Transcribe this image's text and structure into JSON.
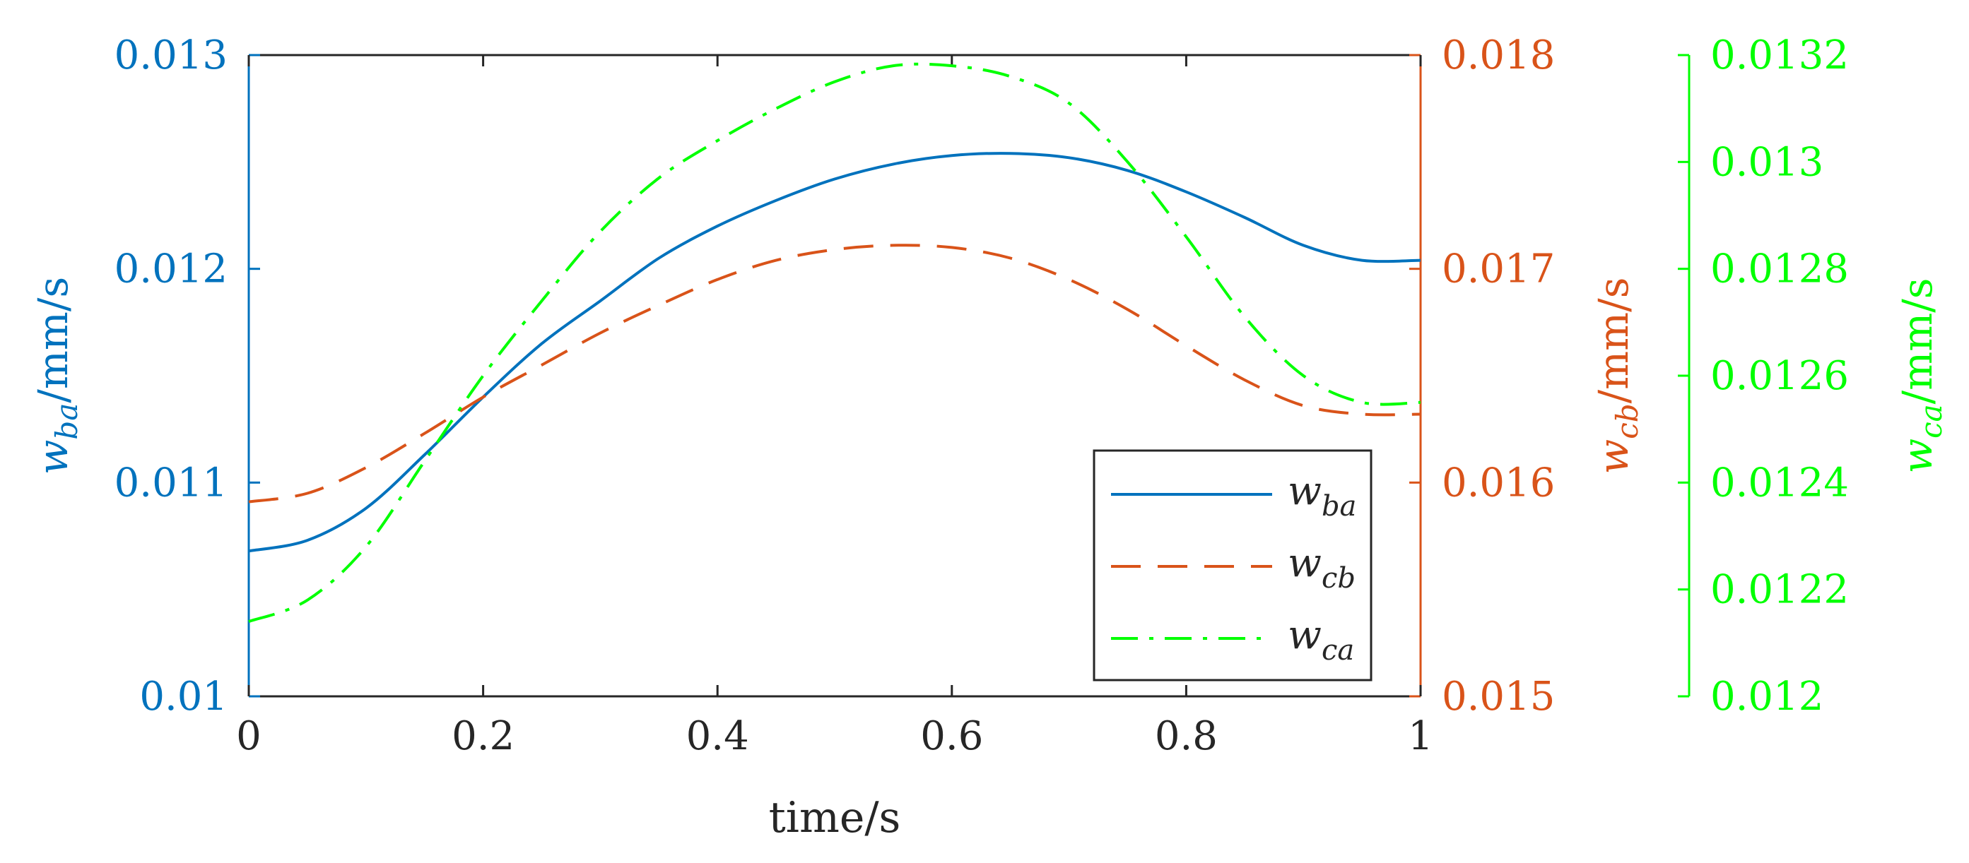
{
  "chart_data": {
    "type": "line",
    "title": "",
    "xlabel": "time/s",
    "x_ticks": [
      0,
      0.2,
      0.4,
      0.6,
      0.8,
      1
    ],
    "x_tick_labels": [
      "0",
      "0.2",
      "0.4",
      "0.6",
      "0.8",
      "1"
    ],
    "xlim": [
      0,
      1
    ],
    "grid": false,
    "legend_position": "bottom-right",
    "axes": {
      "ba": {
        "side": "left",
        "color": "#0072BD",
        "label": {
          "var": "w",
          "sub": "ba",
          "unit": "/mm/s"
        },
        "ylim": [
          0.01,
          0.013
        ],
        "ticks": [
          0.01,
          0.011,
          0.012,
          0.013
        ],
        "tick_labels": [
          "0.01",
          "0.011",
          "0.012",
          "0.013"
        ]
      },
      "cb": {
        "side": "right",
        "color": "#D95319",
        "label": {
          "var": "w",
          "sub": "cb",
          "unit": "/mm/s"
        },
        "ylim": [
          0.015,
          0.018
        ],
        "ticks": [
          0.015,
          0.016,
          0.017,
          0.018
        ],
        "tick_labels": [
          "0.015",
          "0.016",
          "0.017",
          "0.018"
        ]
      },
      "ca": {
        "side": "right-outer",
        "color": "#00FF00",
        "label": {
          "var": "w",
          "sub": "ca",
          "unit": "/mm/s"
        },
        "ylim": [
          0.012,
          0.0132
        ],
        "ticks": [
          0.012,
          0.0122,
          0.0124,
          0.0126,
          0.0128,
          0.013,
          0.0132
        ],
        "tick_labels": [
          "0.012",
          "0.0122",
          "0.0124",
          "0.0126",
          "0.0128",
          "0.013",
          "0.0132"
        ]
      }
    },
    "series": [
      {
        "name": "w_ba",
        "legend_var": "w",
        "legend_sub": "ba",
        "axis": "ba",
        "color": "#0072BD",
        "style": "solid",
        "x": [
          0,
          0.05,
          0.1,
          0.15,
          0.2,
          0.25,
          0.3,
          0.35,
          0.4,
          0.45,
          0.5,
          0.55,
          0.6,
          0.65,
          0.7,
          0.75,
          0.8,
          0.85,
          0.9,
          0.95,
          1.0
        ],
        "values": [
          0.01068,
          0.01073,
          0.01088,
          0.01113,
          0.0114,
          0.01165,
          0.01185,
          0.01205,
          0.0122,
          0.01232,
          0.01242,
          0.01249,
          0.01253,
          0.01254,
          0.01252,
          0.01246,
          0.01236,
          0.01224,
          0.01211,
          0.01204,
          0.01204
        ]
      },
      {
        "name": "w_cb",
        "legend_var": "w",
        "legend_sub": "cb",
        "axis": "cb",
        "color": "#D95319",
        "style": "dashed",
        "x": [
          0,
          0.05,
          0.1,
          0.15,
          0.2,
          0.25,
          0.3,
          0.35,
          0.4,
          0.45,
          0.5,
          0.55,
          0.6,
          0.65,
          0.7,
          0.75,
          0.8,
          0.85,
          0.9,
          0.95,
          1.0
        ],
        "values": [
          0.01591,
          0.01595,
          0.01607,
          0.01623,
          0.0164,
          0.01655,
          0.0167,
          0.01683,
          0.01695,
          0.01704,
          0.01709,
          0.01711,
          0.0171,
          0.01705,
          0.01695,
          0.01681,
          0.01664,
          0.01648,
          0.01636,
          0.01632,
          0.01632
        ]
      },
      {
        "name": "w_ca",
        "legend_var": "w",
        "legend_sub": "ca",
        "axis": "ca",
        "color": "#00FF00",
        "style": "dashdot",
        "x": [
          0,
          0.05,
          0.1,
          0.15,
          0.2,
          0.25,
          0.3,
          0.35,
          0.4,
          0.45,
          0.5,
          0.55,
          0.6,
          0.65,
          0.7,
          0.75,
          0.8,
          0.85,
          0.9,
          0.95,
          1.0
        ],
        "values": [
          0.01214,
          0.01218,
          0.01228,
          0.01244,
          0.0126,
          0.01274,
          0.01287,
          0.01297,
          0.01304,
          0.0131,
          0.01315,
          0.01318,
          0.01318,
          0.01316,
          0.01311,
          0.013,
          0.01286,
          0.01271,
          0.0126,
          0.01255,
          0.01255
        ]
      }
    ]
  }
}
